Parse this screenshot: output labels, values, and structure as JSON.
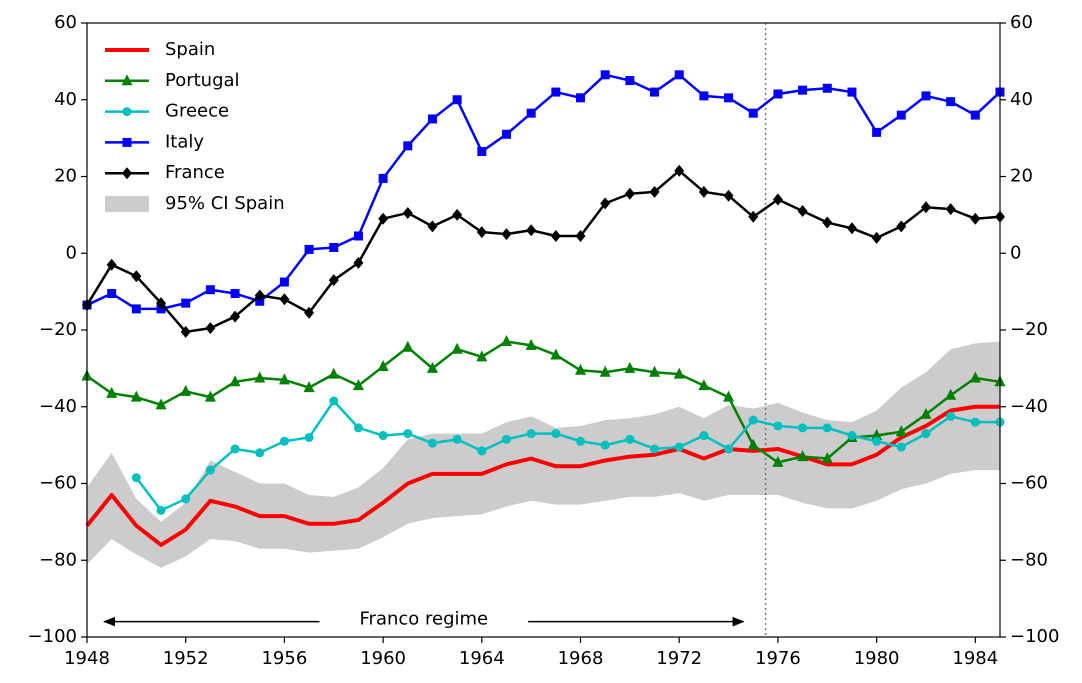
{
  "chart_data": {
    "type": "line",
    "x": [
      1948,
      1949,
      1950,
      1951,
      1952,
      1953,
      1954,
      1955,
      1956,
      1957,
      1958,
      1959,
      1960,
      1961,
      1962,
      1963,
      1964,
      1965,
      1966,
      1967,
      1968,
      1969,
      1970,
      1971,
      1972,
      1973,
      1974,
      1975,
      1976,
      1977,
      1978,
      1979,
      1980,
      1981,
      1982,
      1983,
      1984,
      1985
    ],
    "series": [
      {
        "name": "Spain",
        "color": "#ff0000",
        "marker": "none",
        "values": [
          -71,
          -63,
          -71,
          -76,
          -72,
          -64.5,
          -66,
          -68.5,
          -68.5,
          -70.5,
          -70.5,
          -69.5,
          -65,
          -60,
          -57.5,
          -57.5,
          -57.5,
          -55,
          -53.5,
          -55.5,
          -55.5,
          -54,
          -53,
          -52.5,
          -51,
          -53.5,
          -51,
          -51.5,
          -51,
          -53,
          -55,
          -55,
          -52.5,
          -48,
          -45,
          -41,
          -40,
          -40
        ]
      },
      {
        "name": "Portugal",
        "color": "#008000",
        "marker": "triangle",
        "values": [
          -32,
          -36.5,
          -37.5,
          -39.5,
          -36,
          -37.5,
          -33.5,
          -32.5,
          -33,
          -35,
          -31.5,
          -34.5,
          -29.5,
          -24.5,
          -30,
          -25,
          -27,
          -23,
          -24,
          -26.5,
          -30.5,
          -31,
          -30,
          -31,
          -31.5,
          -34.5,
          -37.5,
          -50,
          -54.5,
          -53,
          -53.5,
          -48,
          -47.5,
          -46.5,
          -42,
          -37,
          -32.5,
          -33.5
        ]
      },
      {
        "name": "Greece",
        "color": "#00bfbf",
        "marker": "circle",
        "values": [
          null,
          null,
          -58.5,
          -67,
          -64,
          -56.5,
          -51,
          -52,
          -49,
          -48,
          -38.5,
          -45.5,
          -47.5,
          -47,
          -49.5,
          -48.5,
          -51.5,
          -48.5,
          -47,
          -47,
          -49,
          -50,
          -48.5,
          -51,
          -50.5,
          -47.5,
          -51,
          -43.5,
          -45,
          -45.5,
          -45.5,
          -47.5,
          -49,
          -50.5,
          -47,
          -42.5,
          -44,
          -44
        ]
      },
      {
        "name": "Italy",
        "color": "#0000ff",
        "marker": "square",
        "values": [
          -13.5,
          -10.5,
          -14.5,
          -14.5,
          -13,
          -9.5,
          -10.5,
          -12.5,
          -7.5,
          1,
          1.5,
          4.5,
          19.5,
          28,
          35,
          40,
          26.5,
          31,
          36.5,
          42,
          40.5,
          46.5,
          45,
          42,
          46.5,
          41,
          40.5,
          36.5,
          41.5,
          42.5,
          43,
          42,
          31.5,
          36,
          41,
          39.5,
          36,
          42
        ]
      },
      {
        "name": "France",
        "color": "#000000",
        "marker": "diamond",
        "values": [
          -13.5,
          -3,
          -6,
          -13,
          -20.5,
          -19.5,
          -16.5,
          -11,
          -12,
          -15.5,
          -7,
          -2.5,
          9,
          10.5,
          7,
          10,
          5.5,
          5,
          6,
          4.5,
          4.5,
          13,
          15.5,
          16,
          21.5,
          16,
          15,
          9.5,
          14,
          11,
          8,
          6.5,
          4,
          7,
          12,
          11.5,
          9,
          9.5
        ]
      }
    ],
    "band": {
      "name": "95% CI Spain",
      "color": "#cccccc",
      "upper": [
        -61,
        -52,
        -64,
        -70,
        -65,
        -54,
        -57,
        -60,
        -60,
        -63,
        -63.5,
        -61,
        -56,
        -48.5,
        -47,
        -47,
        -47,
        -44,
        -42.5,
        -45.5,
        -45,
        -43.5,
        -43,
        -42,
        -40,
        -43,
        -39.5,
        -40.5,
        -39,
        -41.5,
        -43.5,
        -44,
        -41,
        -35,
        -31,
        -25,
        -23.5,
        -23
      ],
      "lower": [
        -81,
        -74.5,
        -78.5,
        -82,
        -79,
        -74.5,
        -75,
        -77,
        -77,
        -78,
        -77.5,
        -77,
        -74,
        -70.5,
        -69,
        -68.5,
        -68,
        -66,
        -64.5,
        -65.5,
        -65.5,
        -64.5,
        -63.5,
        -63.5,
        -62.5,
        -64.5,
        -63,
        -63,
        -63,
        -65,
        -66.5,
        -66.5,
        -64.5,
        -61.5,
        -60,
        -57.5,
        -56.5,
        -56.5
      ]
    },
    "xlim": [
      1948,
      1985
    ],
    "xticks": [
      1948,
      1952,
      1956,
      1960,
      1964,
      1968,
      1972,
      1976,
      1980,
      1984
    ],
    "ylim": [
      -100,
      60
    ],
    "yticks": [
      {
        "value": -100,
        "label": "−100"
      },
      {
        "value": -80,
        "label": "−80"
      },
      {
        "value": -60,
        "label": "−60"
      },
      {
        "value": -40,
        "label": "−40"
      },
      {
        "value": -20,
        "label": "−20"
      },
      0,
      20,
      40,
      60
    ],
    "y2lim": [
      -100,
      60
    ],
    "y2ticks": [
      {
        "value": -100,
        "label": "−100"
      },
      {
        "value": -80,
        "label": "−80"
      },
      {
        "value": -60,
        "label": "−60"
      },
      {
        "value": -40,
        "label": "−40"
      },
      {
        "value": -20,
        "label": "−20"
      },
      0,
      20,
      40,
      60
    ],
    "vline": 1975.5,
    "annotation": {
      "text": "Franco regime",
      "x": [
        1948.7,
        1974.6
      ],
      "y": -96
    },
    "legend": "upper left",
    "grid": false
  }
}
